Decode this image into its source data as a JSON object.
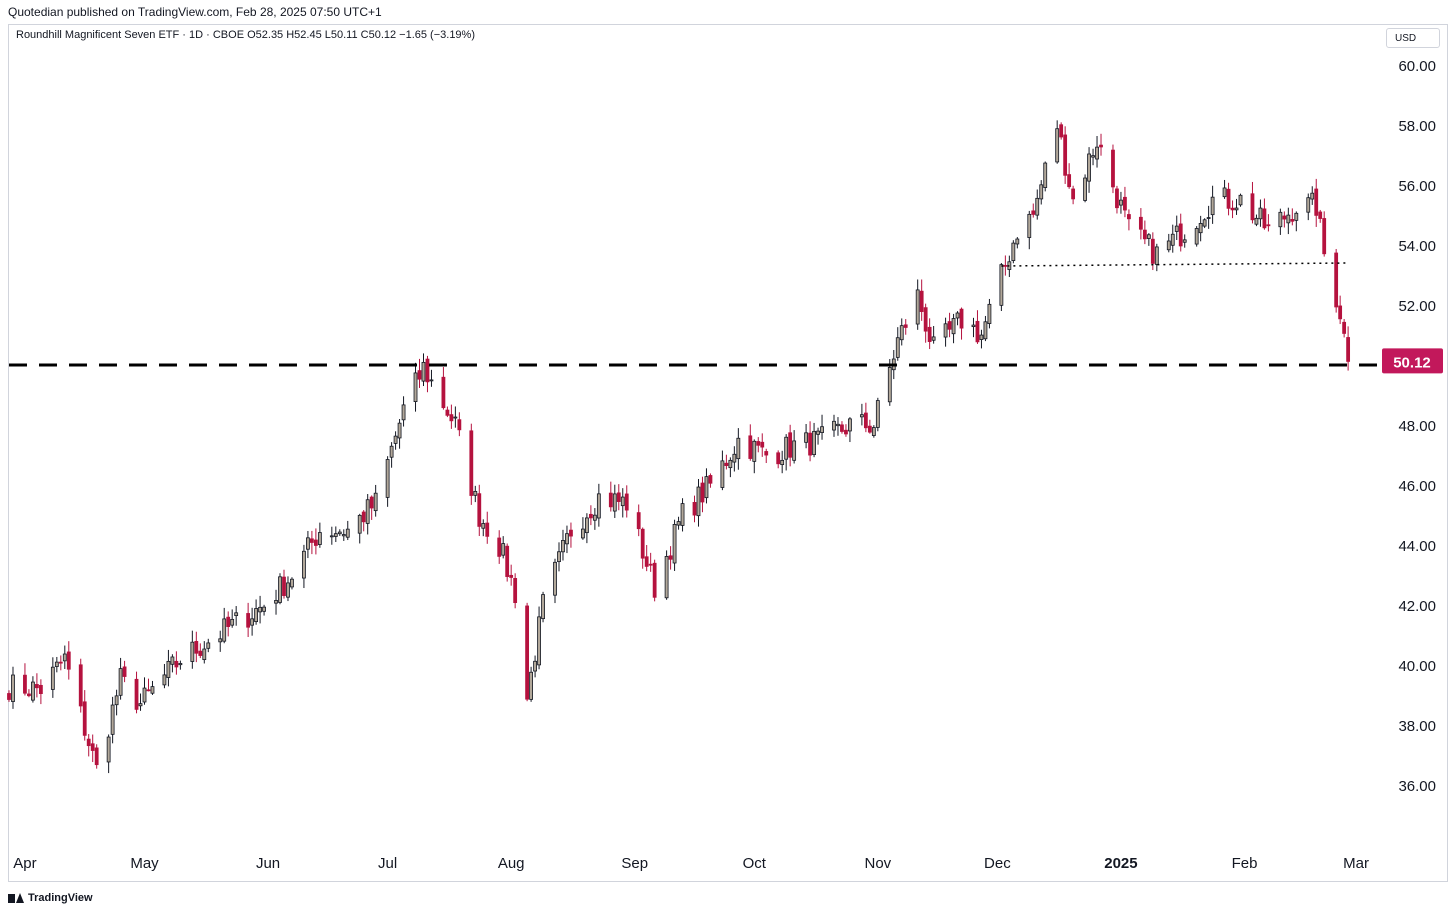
{
  "header": {
    "publisher": "Quotedian published on TradingView.com, Feb 28, 2025 07:50 UTC+1",
    "legend": "Roundhill Magnificent Seven ETF · 1D · CBOE  O52.35  H52.45  L50.11  C50.12  −1.65 (−3.19%)"
  },
  "currency_button": "USD",
  "footer": {
    "brand": "TradingView"
  },
  "chart_data": {
    "type": "candlestick",
    "title": "Roundhill Magnificent Seven ETF · 1D · CBOE",
    "ylim": [
      34.0,
      61.0
    ],
    "y_ticks": [
      "60.00",
      "58.00",
      "56.00",
      "54.00",
      "52.00",
      "50.00",
      "48.00",
      "46.00",
      "44.00",
      "42.00",
      "40.00",
      "38.00",
      "36.00"
    ],
    "x_start": "2024-03-28",
    "x_end": "2025-03-07",
    "x_ticks": [
      {
        "date": "2024-04-01",
        "label": "Apr"
      },
      {
        "date": "2024-05-01",
        "label": "May"
      },
      {
        "date": "2024-06-01",
        "label": "Jun"
      },
      {
        "date": "2024-07-01",
        "label": "Jul"
      },
      {
        "date": "2024-08-01",
        "label": "Aug"
      },
      {
        "date": "2024-09-01",
        "label": "Sep"
      },
      {
        "date": "2024-10-01",
        "label": "Oct"
      },
      {
        "date": "2024-11-01",
        "label": "Nov"
      },
      {
        "date": "2024-12-01",
        "label": "Dec"
      },
      {
        "date": "2025-01-01",
        "label": "2025",
        "bold": true
      },
      {
        "date": "2025-02-01",
        "label": "Feb"
      },
      {
        "date": "2025-03-01",
        "label": "Mar"
      }
    ],
    "last_price": {
      "value": 50.12,
      "label": "50.12",
      "color": "#c2185b"
    },
    "up_color": "#b2a89a",
    "down_color": "#b5123e",
    "annotations": [
      {
        "type": "dashed-horizontal",
        "y": 50.0,
        "from": "2024-03-28",
        "to": "2025-03-07"
      },
      {
        "type": "dotted-horizontal",
        "from_date": "2024-12-02",
        "from_y": 53.3,
        "to_date": "2025-02-27",
        "to_y": 53.4
      }
    ],
    "anchors": [
      [
        "2024-03-28",
        39.3
      ],
      [
        "2024-04-05",
        39.2
      ],
      [
        "2024-04-11",
        40.2
      ],
      [
        "2024-04-19",
        36.5
      ],
      [
        "2024-04-25",
        39.5
      ],
      [
        "2024-04-30",
        38.7
      ],
      [
        "2024-05-10",
        40.2
      ],
      [
        "2024-05-31",
        42.0
      ],
      [
        "2024-06-07",
        43.0
      ],
      [
        "2024-06-14",
        44.5
      ],
      [
        "2024-06-21",
        44.5
      ],
      [
        "2024-06-28",
        45.4
      ],
      [
        "2024-07-05",
        48.5
      ],
      [
        "2024-07-10",
        49.9
      ],
      [
        "2024-07-18",
        48.0
      ],
      [
        "2024-07-24",
        45.0
      ],
      [
        "2024-07-29",
        44.0
      ],
      [
        "2024-08-02",
        42.4
      ],
      [
        "2024-08-05",
        38.9
      ],
      [
        "2024-08-09",
        42.0
      ],
      [
        "2024-08-16",
        44.5
      ],
      [
        "2024-08-23",
        45.6
      ],
      [
        "2024-08-30",
        45.4
      ],
      [
        "2024-09-06",
        42.6
      ],
      [
        "2024-09-13",
        45.0
      ],
      [
        "2024-09-20",
        46.0
      ],
      [
        "2024-09-27",
        47.5
      ],
      [
        "2024-10-04",
        47.0
      ],
      [
        "2024-10-11",
        47.3
      ],
      [
        "2024-10-18",
        47.5
      ],
      [
        "2024-10-25",
        48.0
      ],
      [
        "2024-10-31",
        48.0
      ],
      [
        "2024-11-06",
        50.8
      ],
      [
        "2024-11-11",
        52.3
      ],
      [
        "2024-11-15",
        50.5
      ],
      [
        "2024-11-22",
        51.5
      ],
      [
        "2024-11-27",
        51.0
      ],
      [
        "2024-12-06",
        54.5
      ],
      [
        "2024-12-10",
        55.0
      ],
      [
        "2024-12-16",
        58.0
      ],
      [
        "2024-12-20",
        55.5
      ],
      [
        "2024-12-26",
        57.5
      ],
      [
        "2025-01-03",
        54.5
      ],
      [
        "2025-01-10",
        53.7
      ],
      [
        "2025-01-17",
        54.5
      ],
      [
        "2025-01-24",
        55.5
      ],
      [
        "2025-01-31",
        55.5
      ],
      [
        "2025-02-07",
        54.5
      ],
      [
        "2025-02-14",
        55.3
      ],
      [
        "2025-02-19",
        55.3
      ],
      [
        "2025-02-21",
        53.7
      ],
      [
        "2025-02-25",
        51.8
      ],
      [
        "2025-02-27",
        50.12
      ]
    ]
  }
}
